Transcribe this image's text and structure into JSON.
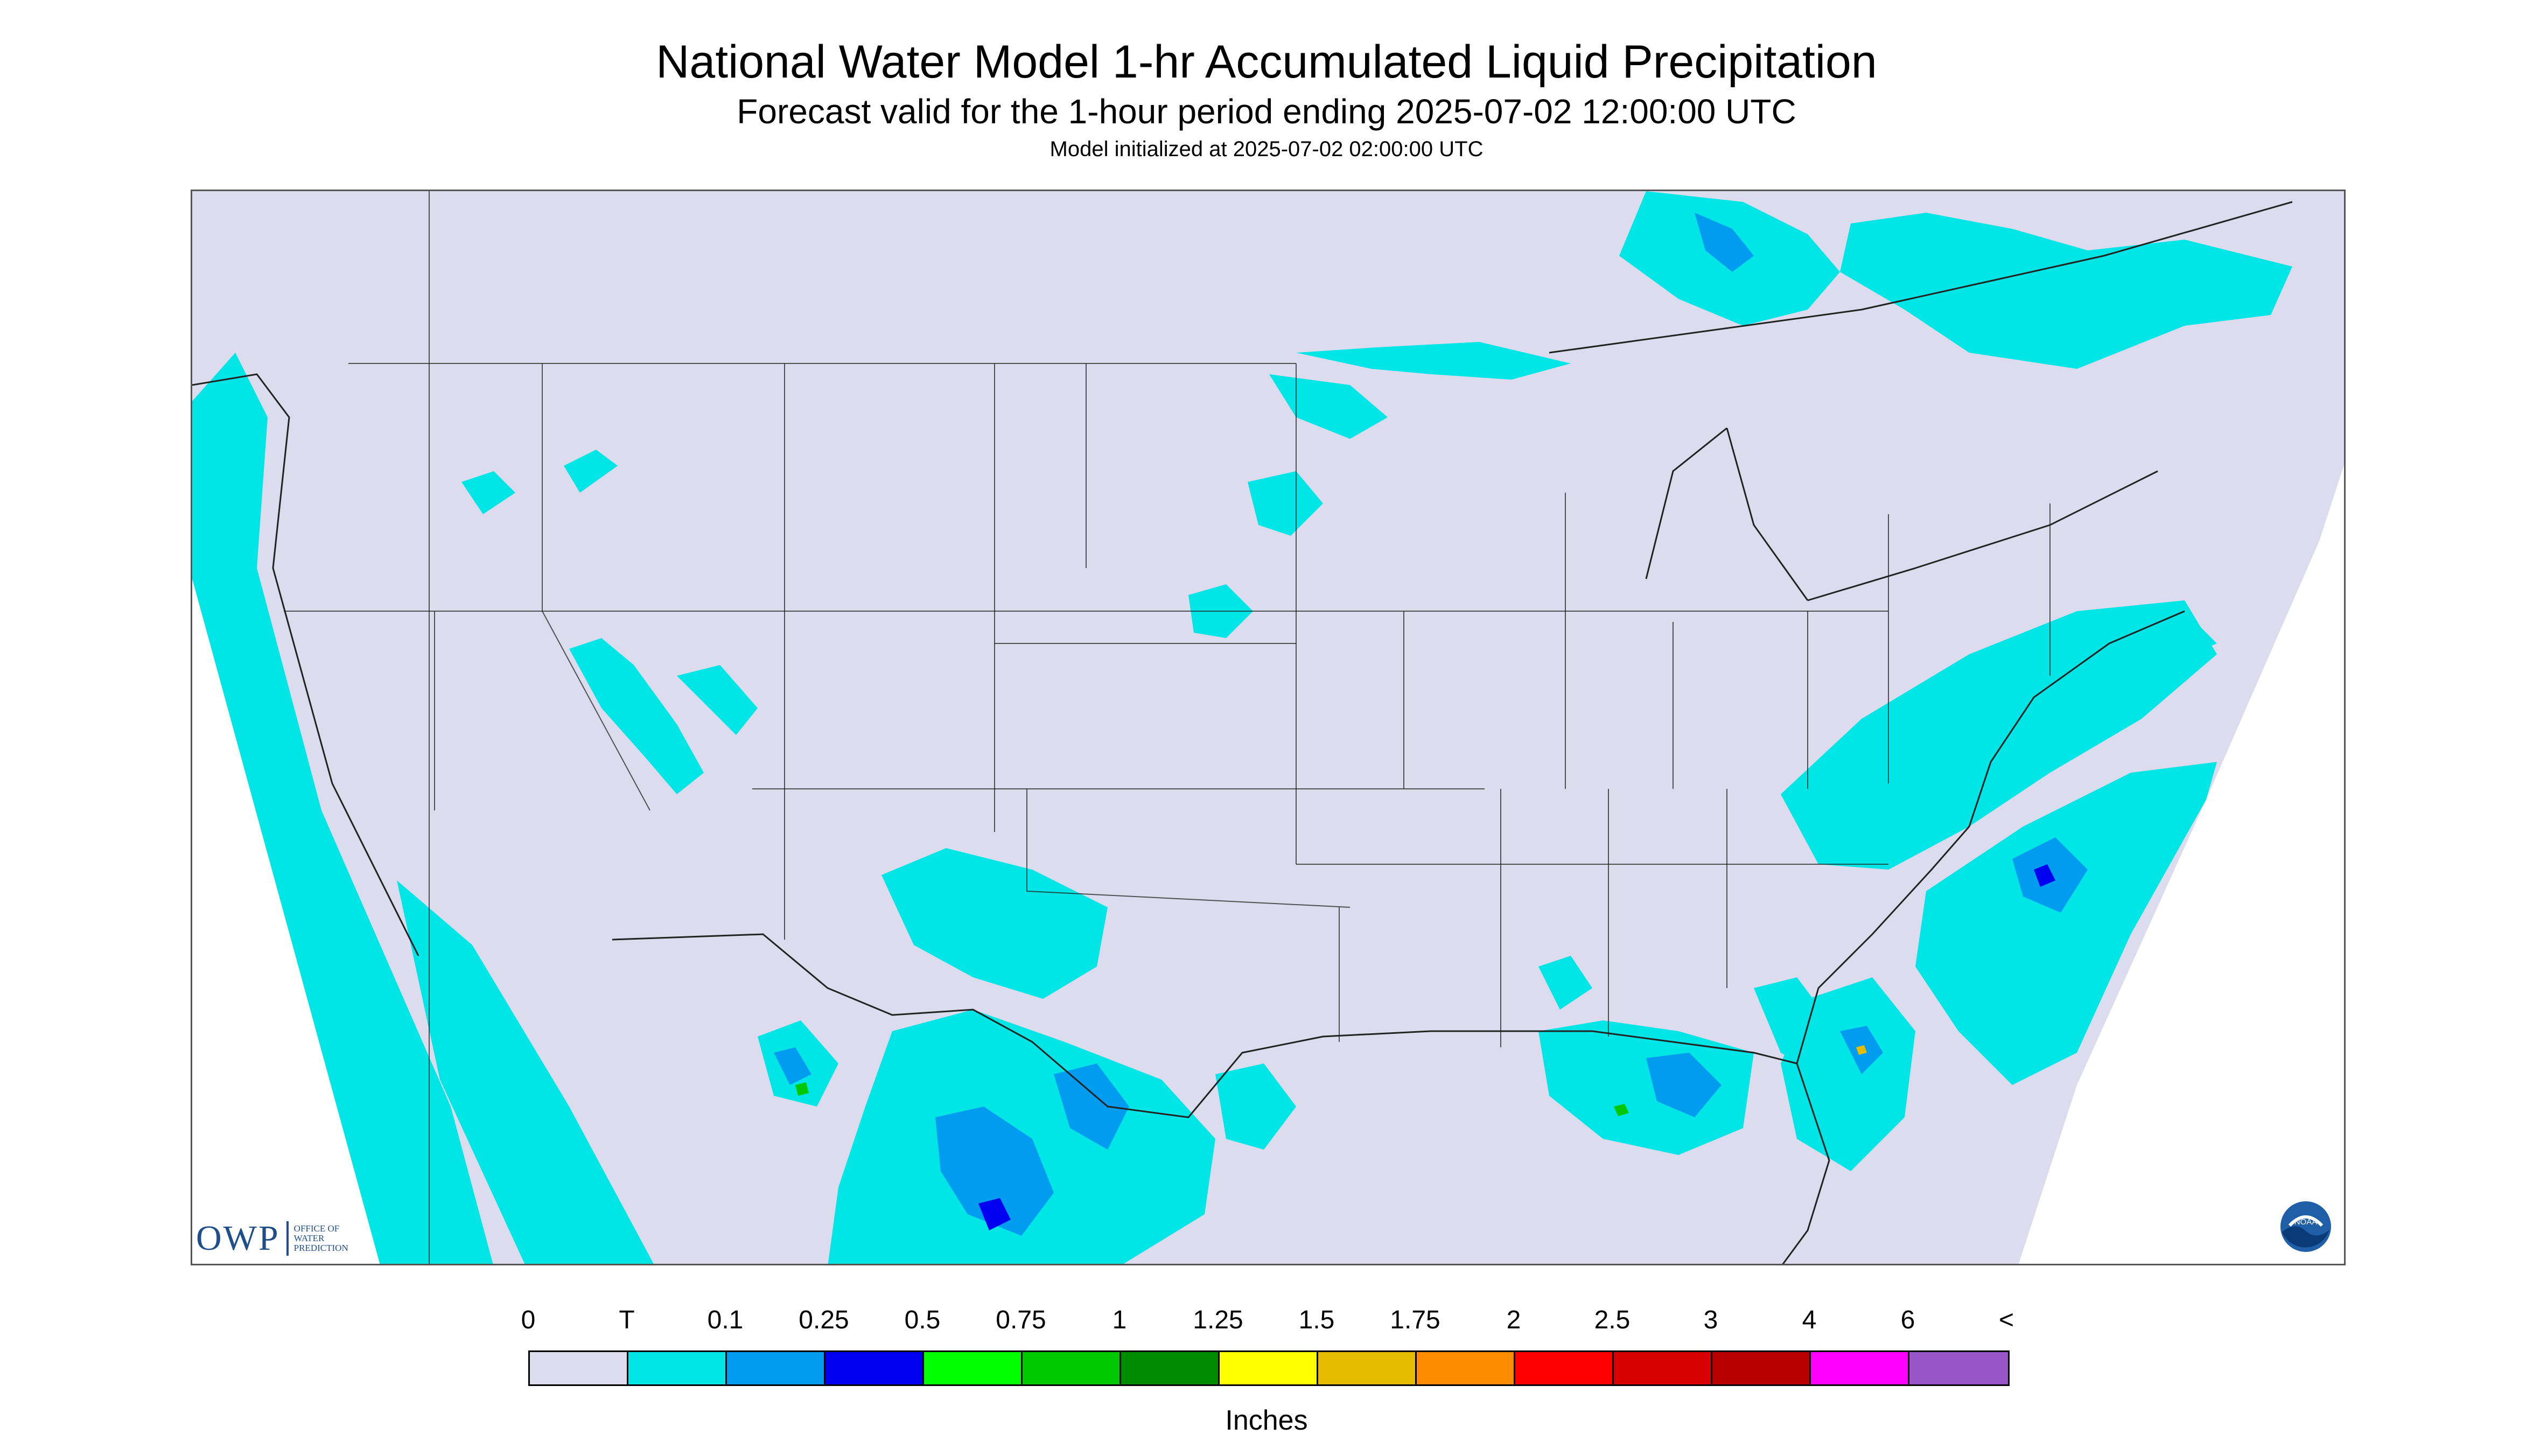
{
  "header": {
    "title": "National Water Model 1-hr Accumulated Liquid Precipitation",
    "subtitle": "Forecast valid for the 1-hour period ending 2025-07-02 12:00:00 UTC",
    "init_line": "Model initialized at 2025-07-02 02:00:00 UTC"
  },
  "logos": {
    "owp_letters": "OWP",
    "owp_words": [
      "OFFICE OF",
      "WATER",
      "PREDICTION"
    ],
    "noaa": "NOAA"
  },
  "legend": {
    "units": "Inches",
    "labels": [
      "0",
      "T",
      "0.1",
      "0.25",
      "0.5",
      "0.75",
      "1",
      "1.25",
      "1.5",
      "1.75",
      "2",
      "2.5",
      "3",
      "4",
      "6",
      "<"
    ],
    "colors": [
      "#dcdcee",
      "#00e5e5",
      "#009cf0",
      "#0000f0",
      "#00ff00",
      "#00c800",
      "#008c00",
      "#ffff00",
      "#e6bc00",
      "#ff8c00",
      "#ff0000",
      "#d80000",
      "#b80000",
      "#ff00ff",
      "#9955c8"
    ]
  },
  "map": {
    "colors": {
      "no_precip": "#dcdcee",
      "trace": "#00e5e5",
      "light": "#009cf0",
      "moderate": "#0000f0",
      "heavy": "#00c800",
      "very_heavy": "#e6bc00",
      "outside_domain": "#ffffff",
      "boundaries": "#222222"
    }
  }
}
